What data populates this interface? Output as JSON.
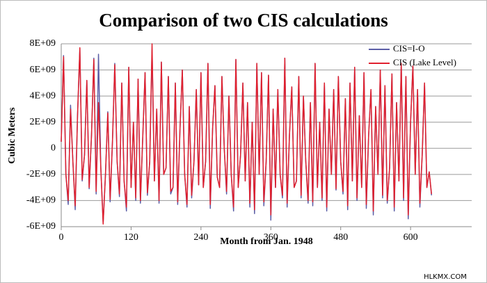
{
  "chart_data": {
    "type": "line",
    "title": "Comparison of two CIS calculations",
    "xlabel": "Month from Jan. 1948",
    "ylabel": "Cubic Meters",
    "watermark": "HLKMX.COM",
    "x": [
      0,
      4,
      8,
      12,
      16,
      20,
      24,
      28,
      32,
      36,
      40,
      44,
      48,
      52,
      56,
      60,
      64,
      68,
      72,
      76,
      80,
      84,
      88,
      92,
      96,
      100,
      104,
      108,
      112,
      116,
      120,
      124,
      128,
      132,
      136,
      140,
      144,
      148,
      152,
      156,
      160,
      164,
      168,
      172,
      176,
      180,
      184,
      188,
      192,
      196,
      200,
      204,
      208,
      212,
      216,
      220,
      224,
      228,
      232,
      236,
      240,
      244,
      248,
      252,
      256,
      260,
      264,
      268,
      272,
      276,
      280,
      284,
      288,
      292,
      296,
      300,
      304,
      308,
      312,
      316,
      320,
      324,
      328,
      332,
      336,
      340,
      344,
      348,
      352,
      356,
      360,
      364,
      368,
      372,
      376,
      380,
      384,
      388,
      392,
      396,
      400,
      404,
      408,
      412,
      416,
      420,
      424,
      428,
      432,
      436,
      440,
      444,
      448,
      452,
      456,
      460,
      464,
      468,
      472,
      476,
      480,
      484,
      488,
      492,
      496,
      500,
      504,
      508,
      512,
      516,
      520,
      524,
      528,
      532,
      536,
      540,
      544,
      548,
      552,
      556,
      560,
      564,
      568,
      572,
      576,
      580,
      584,
      588,
      592,
      596,
      600,
      604,
      608,
      612,
      616,
      620,
      624,
      628,
      632,
      636
    ],
    "series": [
      {
        "name": "CIS=I-O",
        "color": "#5b5ea6",
        "values": [
          500000000.0,
          7100000000.0,
          -2000000000.0,
          -4300000000.0,
          3300000000.0,
          -1000000000.0,
          -4700000000.0,
          2500000000.0,
          7600000000.0,
          -2500000000.0,
          -500000000.0,
          5200000000.0,
          -3100000000.0,
          1000000000.0,
          6900000000.0,
          -3500000000.0,
          7200000000.0,
          -1500000000.0,
          -5700000000.0,
          -2000000000.0,
          2800000000.0,
          -4100000000.0,
          500000000.0,
          6500000000.0,
          -1000000000.0,
          -3700000000.0,
          5000000000.0,
          -2500000000.0,
          -4800000000.0,
          6200000000.0,
          -3000000000.0,
          2000000000.0,
          -4000000000.0,
          5300000000.0,
          -4200000000.0,
          800000000.0,
          5800000000.0,
          -3600000000.0,
          -1000000000.0,
          7500000000.0,
          -2500000000.0,
          3000000000.0,
          -4200000000.0,
          6600000000.0,
          -2000000000.0,
          -1500000000.0,
          5500000000.0,
          -3500000000.0,
          -3000000000.0,
          5000000000.0,
          -4300000000.0,
          1500000000.0,
          6000000000.0,
          -2000000000.0,
          -4500000000.0,
          3200000000.0,
          -3800000000.0,
          -1000000000.0,
          4500000000.0,
          -2800000000.0,
          5800000000.0,
          -3000000000.0,
          -1000000000.0,
          6500000000.0,
          -4600000000.0,
          1500000000.0,
          4800000000.0,
          -2200000000.0,
          -3000000000.0,
          5500000000.0,
          0,
          -3500000000.0,
          4000000000.0,
          -2000000000.0,
          -4800000000.0,
          6800000000.0,
          -3000000000.0,
          -500000000.0,
          5000000000.0,
          -2500000000.0,
          3500000000.0,
          -4500000000.0,
          2000000000.0,
          -5000000000.0,
          6500000000.0,
          -2000000000.0,
          5800000000.0,
          -4400000000.0,
          -1000000000.0,
          5600000000.0,
          -5500000000.0,
          3000000000.0,
          -3000000000.0,
          4500000000.0,
          -2000000000.0,
          -3800000000.0,
          6900000000.0,
          -4500000000.0,
          1000000000.0,
          4700000000.0,
          -3000000000.0,
          -2500000000.0,
          5500000000.0,
          -3800000000.0,
          4000000000.0,
          -1000000000.0,
          -4200000000.0,
          3500000000.0,
          -4400000000.0,
          6500000000.0,
          -3000000000.0,
          2000000000.0,
          -4000000000.0,
          5000000000.0,
          -4800000000.0,
          3000000000.0,
          -2000000000.0,
          4500000000.0,
          -3200000000.0,
          5500000000.0,
          -1000000000.0,
          -3500000000.0,
          3800000000.0,
          -4700000000.0,
          5000000000.0,
          -2500000000.0,
          6200000000.0,
          -4000000000.0,
          2500000000.0,
          -3000000000.0,
          5800000000.0,
          -4600000000.0,
          1000000000.0,
          4500000000.0,
          -5100000000.0,
          3200000000.0,
          -2000000000.0,
          6000000000.0,
          -3800000000.0,
          4800000000.0,
          -4200000000.0,
          -1500000000.0,
          5700000000.0,
          -4800000000.0,
          3500000000.0,
          -2500000000.0,
          6500000000.0,
          -4000000000.0,
          5500000000.0,
          -5400000000.0,
          2000000000.0,
          6300000000.0,
          -2000000000.0,
          4500000000.0,
          -4500000000.0,
          -500000000.0,
          5000000000.0,
          -3000000000.0,
          -1800000000.0,
          -3600000000.0
        ]
      },
      {
        "name": "CIS (Lake Level)",
        "color": "#e0202e",
        "values": [
          500000000.0,
          7000000000.0,
          -2000000000.0,
          -4000000000.0,
          3000000000.0,
          -1000000000.0,
          -4400000000.0,
          2500000000.0,
          7700000000.0,
          -2400000000.0,
          -500000000.0,
          5200000000.0,
          -3000000000.0,
          1000000000.0,
          6800000000.0,
          -3300000000.0,
          3500000000.0,
          -1500000000.0,
          -5800000000.0,
          -2000000000.0,
          2700000000.0,
          -3900000000.0,
          500000000.0,
          6400000000.0,
          -1000000000.0,
          -3500000000.0,
          5000000000.0,
          -2500000000.0,
          -4500000000.0,
          6200000000.0,
          -3000000000.0,
          2000000000.0,
          -3800000000.0,
          5300000000.0,
          -4000000000.0,
          800000000.0,
          5800000000.0,
          -3400000000.0,
          -1000000000.0,
          8000000000.0,
          -2500000000.0,
          3000000000.0,
          -4000000000.0,
          6600000000.0,
          -2000000000.0,
          -1500000000.0,
          5500000000.0,
          -3300000000.0,
          -3000000000.0,
          5000000000.0,
          -4100000000.0,
          1500000000.0,
          6000000000.0,
          -2000000000.0,
          -4300000000.0,
          3200000000.0,
          -3600000000.0,
          -1000000000.0,
          4500000000.0,
          -2800000000.0,
          5800000000.0,
          -3000000000.0,
          -1000000000.0,
          6500000000.0,
          -4300000000.0,
          1500000000.0,
          4800000000.0,
          -2200000000.0,
          -3000000000.0,
          5500000000.0,
          0,
          -3300000000.0,
          4000000000.0,
          -2000000000.0,
          -4500000000.0,
          6800000000.0,
          -3000000000.0,
          -500000000.0,
          5000000000.0,
          -2500000000.0,
          3500000000.0,
          -4200000000.0,
          2000000000.0,
          -4700000000.0,
          6500000000.0,
          -2000000000.0,
          5800000000.0,
          -4100000000.0,
          -1000000000.0,
          5600000000.0,
          -5100000000.0,
          3000000000.0,
          -3000000000.0,
          4500000000.0,
          -2000000000.0,
          -3600000000.0,
          6900000000.0,
          -4200000000.0,
          1000000000.0,
          4700000000.0,
          -3000000000.0,
          -2500000000.0,
          5500000000.0,
          -3600000000.0,
          4000000000.0,
          -1000000000.0,
          -4000000000.0,
          3500000000.0,
          -4100000000.0,
          6500000000.0,
          -3000000000.0,
          2000000000.0,
          -3800000000.0,
          5000000000.0,
          -4500000000.0,
          3000000000.0,
          -2000000000.0,
          4500000000.0,
          -3100000000.0,
          5500000000.0,
          -1000000000.0,
          -3300000000.0,
          3800000000.0,
          -4400000000.0,
          5000000000.0,
          -2500000000.0,
          6200000000.0,
          -3800000000.0,
          2500000000.0,
          -3000000000.0,
          5800000000.0,
          -4300000000.0,
          1000000000.0,
          4500000000.0,
          -4800000000.0,
          3200000000.0,
          -2000000000.0,
          6000000000.0,
          -3600000000.0,
          4800000000.0,
          -4000000000.0,
          -1500000000.0,
          5700000000.0,
          -4500000000.0,
          3500000000.0,
          -2500000000.0,
          6500000000.0,
          -3800000000.0,
          5500000000.0,
          -5100000000.0,
          2000000000.0,
          6300000000.0,
          -2000000000.0,
          4500000000.0,
          -4200000000.0,
          -500000000.0,
          5000000000.0,
          -3000000000.0,
          -1800000000.0,
          -3500000000.0
        ]
      }
    ],
    "xlim": [
      0,
      705
    ],
    "xticks": [
      0,
      120,
      240,
      360,
      480,
      600
    ],
    "ylim": [
      -6000000000.0,
      8000000000.0
    ],
    "yticks": [
      {
        "value": -6000000000.0,
        "label": "-6E+09"
      },
      {
        "value": -4000000000.0,
        "label": "-4E+09"
      },
      {
        "value": -2000000000.0,
        "label": "-2E+09"
      },
      0,
      {
        "value": 2000000000.0,
        "label": "2E+09"
      },
      {
        "value": 4000000000.0,
        "label": "4E+09"
      },
      {
        "value": 6000000000.0,
        "label": "6E+09"
      },
      {
        "value": 8000000000.0,
        "label": "8E+09"
      }
    ],
    "grid": true,
    "legend": "upper right"
  }
}
